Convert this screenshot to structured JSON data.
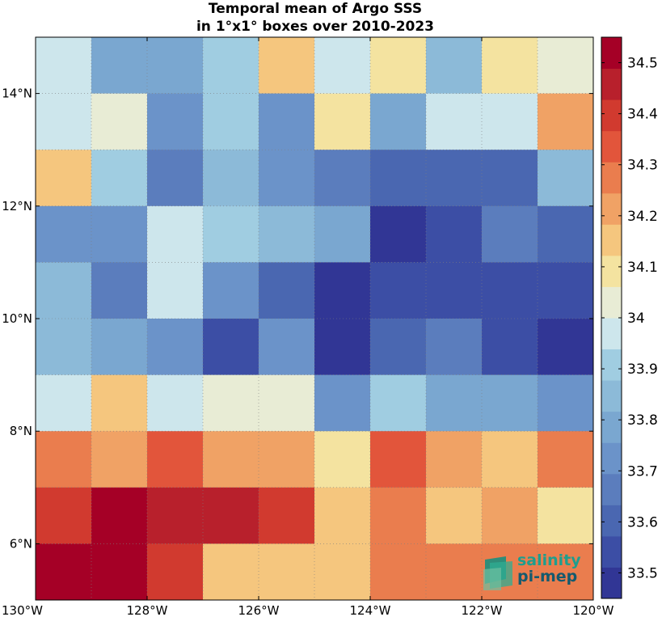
{
  "chart_data": {
    "type": "heatmap",
    "title_lines": [
      "Temporal mean of Argo SSS",
      "in 1°x1° boxes over 2010-2023"
    ],
    "x_ticks": [
      -130,
      -128,
      -126,
      -124,
      -122,
      -120
    ],
    "x_tick_labels": [
      "130°W",
      "128°W",
      "126°W",
      "124°W",
      "122°W",
      "120°W"
    ],
    "y_ticks": [
      6,
      8,
      10,
      12,
      14
    ],
    "y_tick_labels": [
      "6°N",
      "8°N",
      "10°N",
      "12°N",
      "14°N"
    ],
    "xlim": [
      -130,
      -120
    ],
    "ylim": [
      5,
      15
    ],
    "grid": true,
    "colorbar": {
      "range": [
        33.45,
        34.55
      ],
      "ticks": [
        33.5,
        33.6,
        33.7,
        33.8,
        33.9,
        34.0,
        34.1,
        34.2,
        34.3,
        34.4,
        34.5
      ],
      "tick_labels": [
        "33.5",
        "33.6",
        "33.7",
        "33.8",
        "33.9",
        "34",
        "34.1",
        "34.2",
        "34.3",
        "34.4",
        "34.5"
      ],
      "colors": [
        "#313695",
        "#3c4ea5",
        "#4a67b1",
        "#5b7dbd",
        "#6b93c9",
        "#7aa7d0",
        "#8cbad8",
        "#a0cde1",
        "#cde6ec",
        "#e8ecd5",
        "#f4e3a0",
        "#f5c67e",
        "#f0a265",
        "#ea7d4e",
        "#e2553b",
        "#d13a2f",
        "#b8202c",
        "#a50026"
      ]
    },
    "row_lats": [
      14.5,
      13.5,
      12.5,
      11.5,
      10.5,
      9.5,
      8.5,
      7.5,
      6.5,
      5.5
    ],
    "col_lons": [
      -129.5,
      -128.5,
      -127.5,
      -126.5,
      -125.5,
      -124.5,
      -123.5,
      -122.5,
      -121.5,
      -120.5
    ],
    "values": [
      [
        33.98,
        33.79,
        33.79,
        33.89,
        34.16,
        33.98,
        34.1,
        33.83,
        34.1,
        34.03
      ],
      [
        33.98,
        34.03,
        33.72,
        33.89,
        33.72,
        34.1,
        33.79,
        33.98,
        33.98,
        34.22
      ],
      [
        34.16,
        33.89,
        33.66,
        33.83,
        33.72,
        33.66,
        33.62,
        33.62,
        33.62,
        33.83
      ],
      [
        33.72,
        33.72,
        33.98,
        33.89,
        33.83,
        33.79,
        33.46,
        33.55,
        33.66,
        33.62
      ],
      [
        33.83,
        33.66,
        33.98,
        33.72,
        33.62,
        33.5,
        33.55,
        33.55,
        33.55,
        33.55
      ],
      [
        33.83,
        33.79,
        33.72,
        33.55,
        33.72,
        33.5,
        33.62,
        33.66,
        33.55,
        33.46
      ],
      [
        33.98,
        34.16,
        33.98,
        34.03,
        34.03,
        33.72,
        33.89,
        33.79,
        33.79,
        33.72
      ],
      [
        34.28,
        34.22,
        34.34,
        34.22,
        34.22,
        34.1,
        34.34,
        34.22,
        34.16,
        34.28
      ],
      [
        34.4,
        34.52,
        34.46,
        34.46,
        34.4,
        34.16,
        34.28,
        34.16,
        34.22,
        34.07
      ],
      [
        34.52,
        34.52,
        34.4,
        34.16,
        34.16,
        34.16,
        34.28,
        34.28,
        34.28,
        34.28
      ]
    ]
  },
  "logo": {
    "line1": "salinity",
    "line2": "pi-mep"
  }
}
